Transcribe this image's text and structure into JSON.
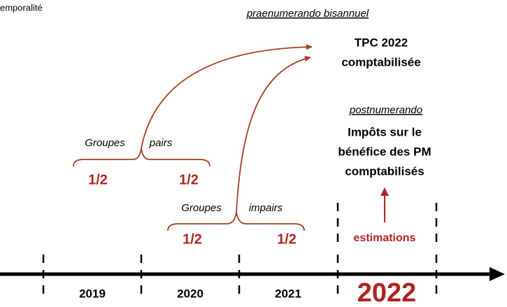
{
  "header": {
    "title": "emporalité"
  },
  "praenumerando": {
    "label": "praenumerando bisannuel",
    "result": [
      "TPC 2022",
      "comptabilisée"
    ]
  },
  "postnumerando": {
    "label": "postnumerando",
    "result": [
      "Impôts sur le",
      "bénéfice des PM",
      "comptabilisés"
    ],
    "note": "estimations"
  },
  "groups": [
    {
      "label": [
        "Groupes",
        "pairs"
      ],
      "halves": [
        "1/2",
        "1/2"
      ]
    },
    {
      "label": [
        "Groupes",
        "impairs"
      ],
      "halves": [
        "1/2",
        "1/2"
      ]
    }
  ],
  "years": [
    "2019",
    "2020",
    "2021",
    "2022"
  ]
}
